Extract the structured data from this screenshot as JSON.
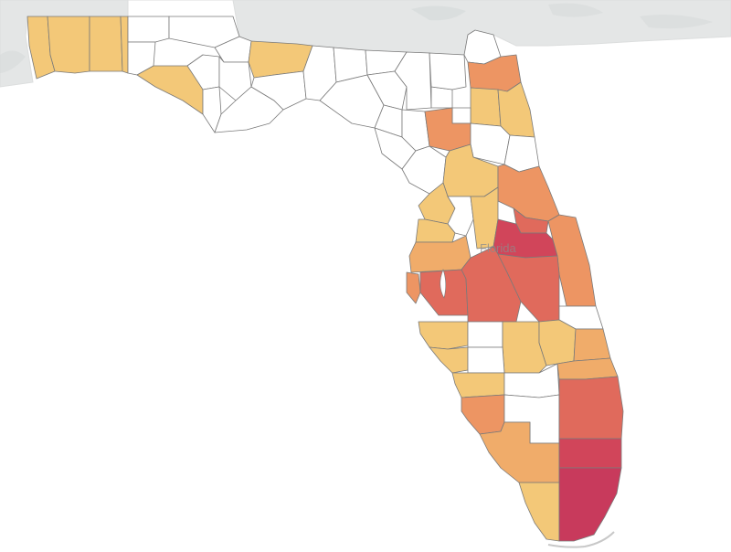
{
  "map": {
    "state_label": "Florida",
    "colors": {
      "water": "#ffffff",
      "neighbor_land": "#e4e6e6",
      "terrain_shade": "#d4d8d8",
      "no_data": "#ffffff",
      "county_border": "#7a7a7a"
    },
    "color_scale": {
      "level_1": "#f3c878",
      "level_2": "#f0ac6a",
      "level_3": "#ed9563",
      "level_4": "#e06a5c",
      "level_5": "#d1455a",
      "level_6": "#c83a5c"
    },
    "counties": [
      {
        "id": "escambia",
        "level": 1
      },
      {
        "id": "santa-rosa",
        "level": 1
      },
      {
        "id": "okaloosa",
        "level": 1
      },
      {
        "id": "walton",
        "level": 1
      },
      {
        "id": "holmes",
        "level": 0
      },
      {
        "id": "washington",
        "level": 0
      },
      {
        "id": "bay",
        "level": 1
      },
      {
        "id": "jackson",
        "level": 0
      },
      {
        "id": "calhoun",
        "level": 0
      },
      {
        "id": "gulf",
        "level": 0
      },
      {
        "id": "gadsden",
        "level": 0
      },
      {
        "id": "liberty",
        "level": 0
      },
      {
        "id": "franklin",
        "level": 0
      },
      {
        "id": "leon",
        "level": 1
      },
      {
        "id": "wakulla",
        "level": 0
      },
      {
        "id": "jefferson",
        "level": 0
      },
      {
        "id": "madison",
        "level": 0
      },
      {
        "id": "taylor",
        "level": 0
      },
      {
        "id": "hamilton",
        "level": 0
      },
      {
        "id": "suwannee",
        "level": 0
      },
      {
        "id": "lafayette",
        "level": 0
      },
      {
        "id": "dixie",
        "level": 0
      },
      {
        "id": "columbia",
        "level": 0
      },
      {
        "id": "gilchrist",
        "level": 0
      },
      {
        "id": "levy",
        "level": 0
      },
      {
        "id": "union",
        "level": 0
      },
      {
        "id": "baker",
        "level": 0
      },
      {
        "id": "nassau",
        "level": 0
      },
      {
        "id": "duval",
        "level": 3
      },
      {
        "id": "clay",
        "level": 1
      },
      {
        "id": "st-johns",
        "level": 1
      },
      {
        "id": "bradford",
        "level": 0
      },
      {
        "id": "alachua",
        "level": 3
      },
      {
        "id": "putnam",
        "level": 0
      },
      {
        "id": "flagler",
        "level": 0
      },
      {
        "id": "marion",
        "level": 1
      },
      {
        "id": "volusia",
        "level": 3
      },
      {
        "id": "citrus",
        "level": 1
      },
      {
        "id": "sumter",
        "level": 0
      },
      {
        "id": "lake",
        "level": 1
      },
      {
        "id": "hernando",
        "level": 1
      },
      {
        "id": "seminole",
        "level": 4
      },
      {
        "id": "orange",
        "level": 5
      },
      {
        "id": "pasco",
        "level": 2
      },
      {
        "id": "brevard",
        "level": 3
      },
      {
        "id": "pinellas",
        "level": 3
      },
      {
        "id": "hillsborough",
        "level": 4
      },
      {
        "id": "polk",
        "level": 4
      },
      {
        "id": "osceola",
        "level": 4
      },
      {
        "id": "indian-river",
        "level": 0
      },
      {
        "id": "manatee",
        "level": 1
      },
      {
        "id": "hardee",
        "level": 0
      },
      {
        "id": "highlands",
        "level": 1
      },
      {
        "id": "okeechobee",
        "level": 1
      },
      {
        "id": "st-lucie",
        "level": 2
      },
      {
        "id": "sarasota",
        "level": 1
      },
      {
        "id": "desoto",
        "level": 0
      },
      {
        "id": "charlotte",
        "level": 1
      },
      {
        "id": "glades",
        "level": 0
      },
      {
        "id": "martin",
        "level": 2
      },
      {
        "id": "lee",
        "level": 3
      },
      {
        "id": "hendry",
        "level": 0
      },
      {
        "id": "palm-beach",
        "level": 4
      },
      {
        "id": "collier",
        "level": 2
      },
      {
        "id": "broward",
        "level": 5
      },
      {
        "id": "monroe",
        "level": 1
      },
      {
        "id": "miami-dade",
        "level": 6
      }
    ]
  }
}
